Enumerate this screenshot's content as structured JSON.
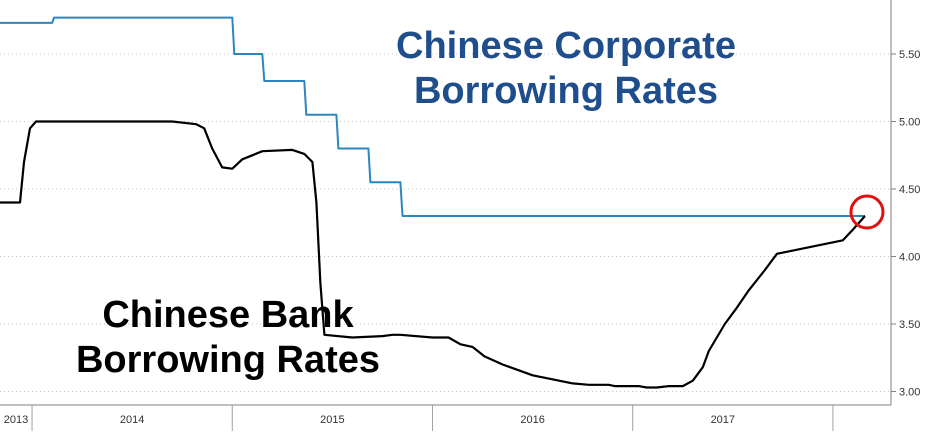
{
  "chart_data": {
    "type": "line",
    "title": "",
    "xlabel": "",
    "ylabel": "",
    "x_range": [
      2012.84,
      2017.29
    ],
    "ylim": [
      2.9,
      5.9
    ],
    "y_ticks": [
      "3.00",
      "3.50",
      "4.00",
      "4.50",
      "5.00",
      "5.50"
    ],
    "x_tick_labels": [
      {
        "label": "2013",
        "at": 2012.92
      },
      {
        "label": "2014",
        "at": 2013.5
      },
      {
        "label": "2015",
        "at": 2014.5
      },
      {
        "label": "2016",
        "at": 2015.5
      },
      {
        "label": "2017",
        "at": 2016.45
      }
    ],
    "x_dividers": [
      2013.0,
      2014.0,
      2015.0,
      2016.0,
      2017.0
    ],
    "grid": "horizontal dashed",
    "annotations": [
      {
        "text": "Chinese Corporate",
        "color": "#1f4e8c"
      },
      {
        "text": "Borrowing Rates",
        "color": "#1f4e8c"
      },
      {
        "text": "Chinese Bank",
        "color": "#000000"
      },
      {
        "text": "Borrowing Rates",
        "color": "#000000"
      }
    ],
    "highlight": {
      "x": 2017.17,
      "y": 4.33,
      "color": "#e01010"
    },
    "series": [
      {
        "color": "#2e86c1",
        "style": "step",
        "x": [
          2012.84,
          2013.1,
          2013.11,
          2014.0,
          2014.01,
          2014.15,
          2014.16,
          2014.36,
          2014.37,
          2014.52,
          2014.53,
          2014.68,
          2014.69,
          2014.84,
          2014.85,
          2017.16
        ],
        "y": [
          5.73,
          5.73,
          5.77,
          5.77,
          5.5,
          5.5,
          5.3,
          5.3,
          5.05,
          5.05,
          4.8,
          4.8,
          4.55,
          4.55,
          4.3,
          4.3
        ]
      },
      {
        "color": "#000000",
        "style": "line",
        "x": [
          2012.84,
          2012.94,
          2012.96,
          2012.99,
          2013.02,
          2013.05,
          2013.2,
          2013.5,
          2013.7,
          2013.82,
          2013.86,
          2013.9,
          2013.95,
          2014.0,
          2014.05,
          2014.1,
          2014.15,
          2014.3,
          2014.36,
          2014.4,
          2014.42,
          2014.44,
          2014.46,
          2014.6,
          2014.75,
          2014.8,
          2014.84,
          2015.0,
          2015.04,
          2015.08,
          2015.14,
          2015.2,
          2015.26,
          2015.35,
          2015.5,
          2015.7,
          2015.78,
          2015.82,
          2015.86,
          2015.88,
          2015.91,
          2015.93,
          2015.96,
          2016.0,
          2016.03,
          2016.07,
          2016.12,
          2016.18,
          2016.25,
          2016.3,
          2016.35,
          2016.38,
          2016.42,
          2016.46,
          2016.52,
          2016.58,
          2016.66,
          2016.72,
          2017.05,
          2017.1,
          2017.16
        ],
        "y": [
          4.4,
          4.4,
          4.7,
          4.95,
          5.0,
          5.0,
          5.0,
          5.0,
          5.0,
          4.98,
          4.95,
          4.8,
          4.66,
          4.65,
          4.72,
          4.75,
          4.78,
          4.79,
          4.76,
          4.7,
          4.4,
          3.8,
          3.42,
          3.4,
          3.41,
          3.42,
          3.42,
          3.4,
          3.4,
          3.4,
          3.35,
          3.33,
          3.26,
          3.2,
          3.12,
          3.06,
          3.05,
          3.05,
          3.05,
          3.05,
          3.04,
          3.04,
          3.04,
          3.04,
          3.04,
          3.03,
          3.03,
          3.04,
          3.04,
          3.08,
          3.18,
          3.3,
          3.4,
          3.5,
          3.62,
          3.75,
          3.9,
          4.02,
          4.12,
          4.2,
          4.3
        ]
      }
    ]
  }
}
